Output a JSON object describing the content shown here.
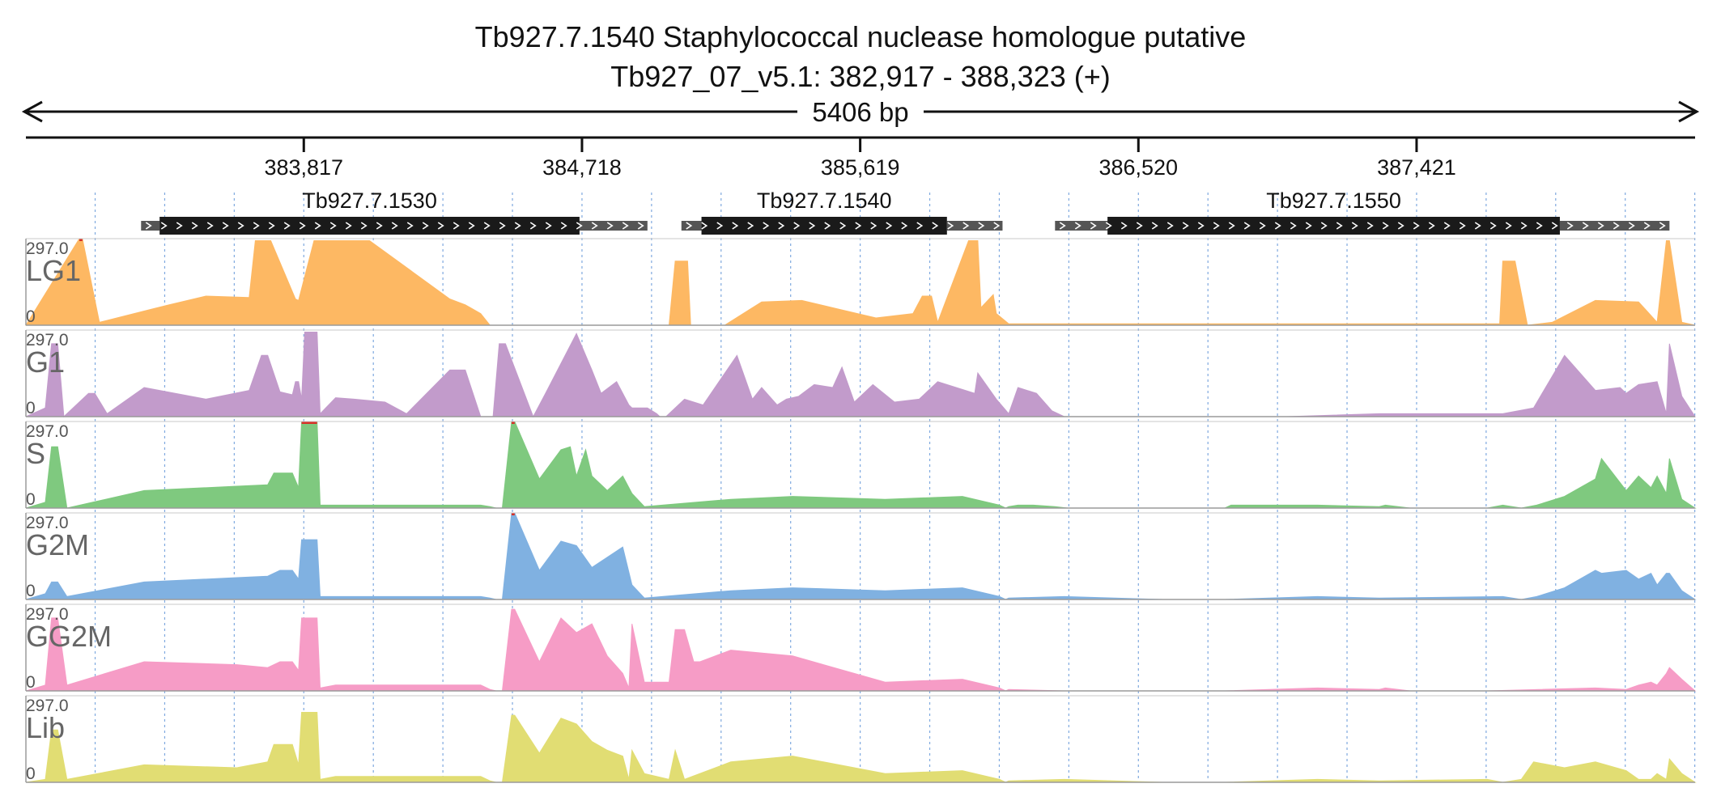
{
  "title": {
    "line1": "Tb927.7.1540  Staphylococcal nuclease homologue  putative",
    "line2": "Tb927_07_v5.1: 382,917 - 388,323 (+)"
  },
  "ruler": {
    "span_label": "5406 bp",
    "ticks": [
      {
        "pos": 383817,
        "label": "383,817"
      },
      {
        "pos": 384718,
        "label": "384,718"
      },
      {
        "pos": 385619,
        "label": "385,619"
      },
      {
        "pos": 386520,
        "label": "386,520"
      },
      {
        "pos": 387421,
        "label": "387,421"
      }
    ]
  },
  "colors": {
    "LG1": "#fdb863",
    "G1": "#c29bcb",
    "S": "#7fc97f",
    "G2M": "#80b1e1",
    "GG2M": "#f69cc6",
    "Lib": "#e1dd73",
    "clip": "#d73027",
    "gene_cds": "#1a1a1a",
    "gene_utr": "#555555",
    "grid": "#7fa9df"
  },
  "chart_data": {
    "type": "area",
    "region": {
      "chrom": "Tb927_07_v5.1",
      "start": 382917,
      "end": 388323,
      "strand": "+"
    },
    "y_range": [
      0,
      297.0
    ],
    "genes": [
      {
        "name": "Tb927.7.1530",
        "utr_start": 383290,
        "cds_start": 383350,
        "cds_end": 384710,
        "utr_end": 384930
      },
      {
        "name": "Tb927.7.1540",
        "utr_start": 385040,
        "cds_start": 385105,
        "cds_end": 385900,
        "utr_end": 386080
      },
      {
        "name": "Tb927.7.1550",
        "utr_start": 386250,
        "cds_start": 386420,
        "cds_end": 387885,
        "utr_end": 388240
      }
    ],
    "series": [
      {
        "name": "LG1",
        "x": [
          382917,
          383090,
          383100,
          383155,
          383380,
          383500,
          383640,
          383660,
          383710,
          383790,
          383800,
          383850,
          384030,
          384290,
          384340,
          384390,
          384420,
          384440,
          384470,
          384490,
          385000,
          385020,
          385060,
          385070,
          385180,
          385300,
          385430,
          385550,
          385670,
          385790,
          385820,
          385850,
          385870,
          385970,
          386000,
          386010,
          386050,
          386060,
          386100,
          387690,
          387700,
          387740,
          387780,
          387860,
          388000,
          388140,
          388200,
          388230,
          388240,
          388280,
          388323
        ],
        "y": [
          0,
          297,
          297,
          10,
          70,
          100,
          95,
          290,
          290,
          90,
          85,
          290,
          290,
          90,
          70,
          40,
          0,
          0,
          0,
          0,
          0,
          220,
          220,
          0,
          0,
          80,
          85,
          55,
          25,
          40,
          100,
          100,
          10,
          290,
          290,
          60,
          105,
          40,
          5,
          5,
          220,
          220,
          0,
          10,
          85,
          80,
          10,
          290,
          290,
          10,
          0
        ]
      },
      {
        "name": "G1",
        "x": [
          382917,
          382980,
          383000,
          383020,
          383040,
          383050,
          383120,
          383140,
          383180,
          383300,
          383500,
          383640,
          383680,
          383700,
          383740,
          383780,
          383790,
          383800,
          383810,
          383820,
          383860,
          383870,
          383920,
          383980,
          384080,
          384150,
          384290,
          384340,
          384390,
          384430,
          384450,
          384470,
          384560,
          384600,
          384700,
          384750,
          384780,
          384830,
          384870,
          384880,
          384930,
          384960,
          384970,
          384980,
          384990,
          385050,
          385110,
          385220,
          385270,
          385300,
          385350,
          385380,
          385420,
          385470,
          385530,
          385560,
          385600,
          385660,
          385730,
          385810,
          385870,
          385990,
          386000,
          386060,
          386100,
          386130,
          386190,
          386240,
          386280,
          387000,
          387300,
          387700,
          387800,
          387900,
          388000,
          388080,
          388100,
          388140,
          388200,
          388230,
          388240,
          388280,
          388323
        ],
        "y": [
          0,
          30,
          250,
          250,
          0,
          10,
          80,
          80,
          10,
          100,
          60,
          90,
          210,
          210,
          85,
          75,
          120,
          120,
          60,
          290,
          290,
          10,
          65,
          60,
          50,
          10,
          160,
          160,
          0,
          0,
          250,
          250,
          0,
          80,
          285,
          160,
          80,
          120,
          40,
          30,
          30,
          10,
          0,
          0,
          0,
          60,
          40,
          210,
          60,
          100,
          40,
          60,
          70,
          110,
          100,
          170,
          50,
          110,
          50,
          60,
          120,
          80,
          150,
          60,
          10,
          100,
          80,
          20,
          0,
          0,
          10,
          10,
          30,
          210,
          90,
          100,
          80,
          110,
          120,
          10,
          250,
          70,
          0
        ]
      },
      {
        "name": "S",
        "x": [
          382917,
          382980,
          383000,
          383020,
          383050,
          383300,
          383600,
          383700,
          383720,
          383780,
          383800,
          383810,
          383860,
          383870,
          383920,
          384390,
          384420,
          384440,
          384460,
          384490,
          384500,
          384580,
          384650,
          384680,
          384700,
          384730,
          384750,
          384800,
          384850,
          384880,
          384920,
          385200,
          385400,
          385700,
          385950,
          386070,
          386090,
          386100,
          386130,
          386180,
          386250,
          386290,
          386600,
          386800,
          386820,
          387100,
          387300,
          387320,
          387400,
          387650,
          387700,
          387760,
          387810,
          387900,
          388000,
          388020,
          388100,
          388140,
          388180,
          388200,
          388230,
          388240,
          388280,
          388323
        ],
        "y": [
          0,
          20,
          210,
          210,
          0,
          60,
          75,
          80,
          120,
          120,
          70,
          297,
          297,
          10,
          10,
          10,
          5,
          0,
          0,
          297,
          297,
          100,
          200,
          210,
          110,
          200,
          110,
          60,
          110,
          50,
          5,
          30,
          40,
          30,
          40,
          10,
          0,
          5,
          10,
          10,
          5,
          0,
          0,
          0,
          10,
          10,
          5,
          10,
          0,
          0,
          10,
          0,
          10,
          40,
          100,
          170,
          60,
          110,
          70,
          110,
          50,
          170,
          30,
          0
        ]
      },
      {
        "name": "G2M",
        "x": [
          382917,
          382980,
          383000,
          383020,
          383050,
          383300,
          383600,
          383700,
          383740,
          383780,
          383800,
          383810,
          383860,
          383870,
          384390,
          384420,
          384440,
          384460,
          384490,
          384500,
          384580,
          384650,
          384700,
          384750,
          384850,
          384880,
          384920,
          385200,
          385400,
          385700,
          385950,
          386070,
          386090,
          386100,
          386280,
          386600,
          386800,
          387100,
          387300,
          387700,
          387760,
          387810,
          387900,
          388000,
          388020,
          388100,
          388140,
          388180,
          388200,
          388230,
          388240,
          388280,
          388323
        ],
        "y": [
          0,
          20,
          60,
          60,
          10,
          60,
          75,
          80,
          100,
          100,
          70,
          205,
          205,
          10,
          10,
          5,
          0,
          0,
          297,
          297,
          100,
          200,
          185,
          110,
          180,
          50,
          5,
          30,
          40,
          30,
          40,
          10,
          0,
          5,
          10,
          0,
          0,
          10,
          5,
          10,
          0,
          10,
          40,
          100,
          90,
          100,
          70,
          90,
          50,
          90,
          90,
          30,
          0
        ]
      },
      {
        "name": "GG2M",
        "x": [
          382917,
          382980,
          383000,
          383020,
          383050,
          383300,
          383600,
          383700,
          383740,
          383780,
          383800,
          383810,
          383860,
          383870,
          383920,
          384390,
          384420,
          384440,
          384460,
          384490,
          384500,
          384580,
          384650,
          384700,
          384750,
          384800,
          384850,
          384870,
          384880,
          384920,
          385000,
          385020,
          385050,
          385080,
          385100,
          385200,
          385400,
          385700,
          385950,
          386070,
          386090,
          386100,
          386280,
          386600,
          386800,
          387100,
          387300,
          387320,
          387400,
          387650,
          388000,
          388100,
          388140,
          388180,
          388200,
          388230,
          388240,
          388280,
          388323
        ],
        "y": [
          0,
          20,
          250,
          250,
          20,
          100,
          90,
          80,
          100,
          100,
          70,
          250,
          250,
          10,
          20,
          20,
          5,
          0,
          0,
          280,
          280,
          100,
          250,
          200,
          230,
          120,
          60,
          10,
          230,
          30,
          30,
          210,
          210,
          100,
          100,
          140,
          120,
          30,
          40,
          10,
          0,
          5,
          0,
          0,
          0,
          10,
          5,
          10,
          0,
          0,
          10,
          5,
          20,
          30,
          20,
          60,
          80,
          40,
          0
        ]
      },
      {
        "name": "Lib",
        "x": [
          382917,
          382980,
          383000,
          383020,
          383050,
          383300,
          383600,
          383700,
          383720,
          383780,
          383800,
          383810,
          383860,
          383870,
          383920,
          384390,
          384420,
          384440,
          384460,
          384490,
          384500,
          384580,
          384650,
          384700,
          384750,
          384800,
          384850,
          384870,
          384880,
          384920,
          385000,
          385020,
          385050,
          385200,
          385400,
          385700,
          385950,
          386070,
          386090,
          386100,
          386280,
          386600,
          386800,
          387100,
          387300,
          387650,
          387700,
          387760,
          387800,
          387900,
          388000,
          388100,
          388140,
          388180,
          388200,
          388230,
          388240,
          388280,
          388323
        ],
        "y": [
          0,
          10,
          180,
          180,
          10,
          60,
          50,
          70,
          130,
          130,
          60,
          240,
          240,
          10,
          20,
          20,
          5,
          0,
          0,
          230,
          230,
          100,
          220,
          200,
          140,
          110,
          90,
          10,
          110,
          30,
          10,
          110,
          10,
          70,
          90,
          30,
          40,
          10,
          0,
          5,
          10,
          0,
          0,
          10,
          5,
          10,
          0,
          10,
          70,
          50,
          70,
          40,
          10,
          10,
          30,
          10,
          80,
          30,
          0
        ]
      }
    ]
  }
}
